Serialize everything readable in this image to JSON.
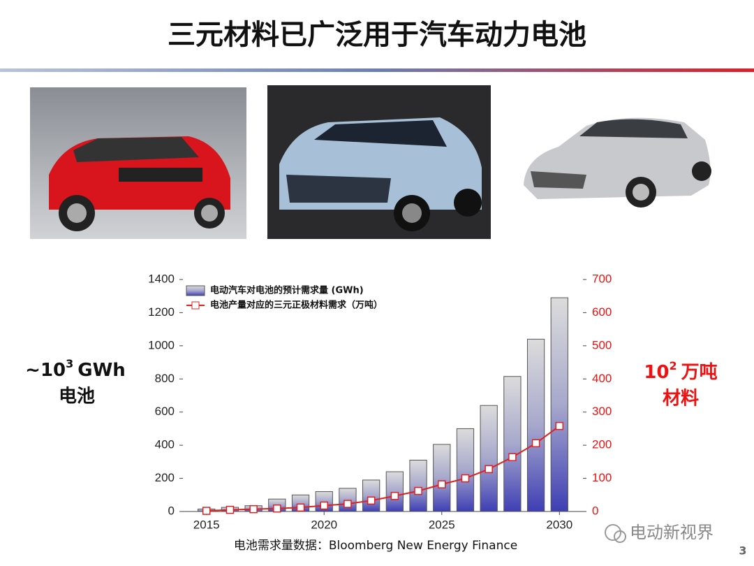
{
  "title": "三元材料已广泛用于汽车动力电池",
  "left_note": {
    "base": "~10",
    "exponent": "3",
    "unit": "GWh",
    "line2": "电池"
  },
  "right_note": {
    "base": "10",
    "exponent": "2",
    "unit": "万吨",
    "line2": "材料"
  },
  "source": "电池需求量数据：Bloomberg New Energy Finance",
  "watermark": "电动新视界",
  "page_number": "3",
  "chart_data": {
    "type": "bar",
    "x": [
      2015,
      2016,
      2017,
      2018,
      2019,
      2020,
      2021,
      2022,
      2023,
      2024,
      2025,
      2026,
      2027,
      2028,
      2029,
      2030
    ],
    "xlim": [
      2014,
      2031
    ],
    "xticks": [
      2015,
      2020,
      2025,
      2030
    ],
    "ylim": [
      0,
      1400
    ],
    "yticks": [
      0,
      200,
      400,
      600,
      800,
      1000,
      1200,
      1400
    ],
    "y2lim": [
      0,
      700
    ],
    "y2ticks": [
      0,
      100,
      200,
      300,
      400,
      500,
      600,
      700
    ],
    "legend": "upper left",
    "series": [
      {
        "name": "电动汽车对电池的预计需求量 (GWh)",
        "type": "bar",
        "color": "#4a4ab8",
        "values": [
          15,
          25,
          35,
          75,
          100,
          120,
          140,
          190,
          240,
          310,
          405,
          500,
          640,
          815,
          1040,
          1290
        ]
      },
      {
        "name": "电池产量对应的三元正极材料需求（万吨）",
        "type": "line",
        "axis": "y2",
        "color": "#e02020",
        "values": [
          2,
          5,
          7,
          9,
          12,
          18,
          23,
          33,
          47,
          62,
          82,
          100,
          128,
          164,
          206,
          258
        ]
      }
    ]
  }
}
